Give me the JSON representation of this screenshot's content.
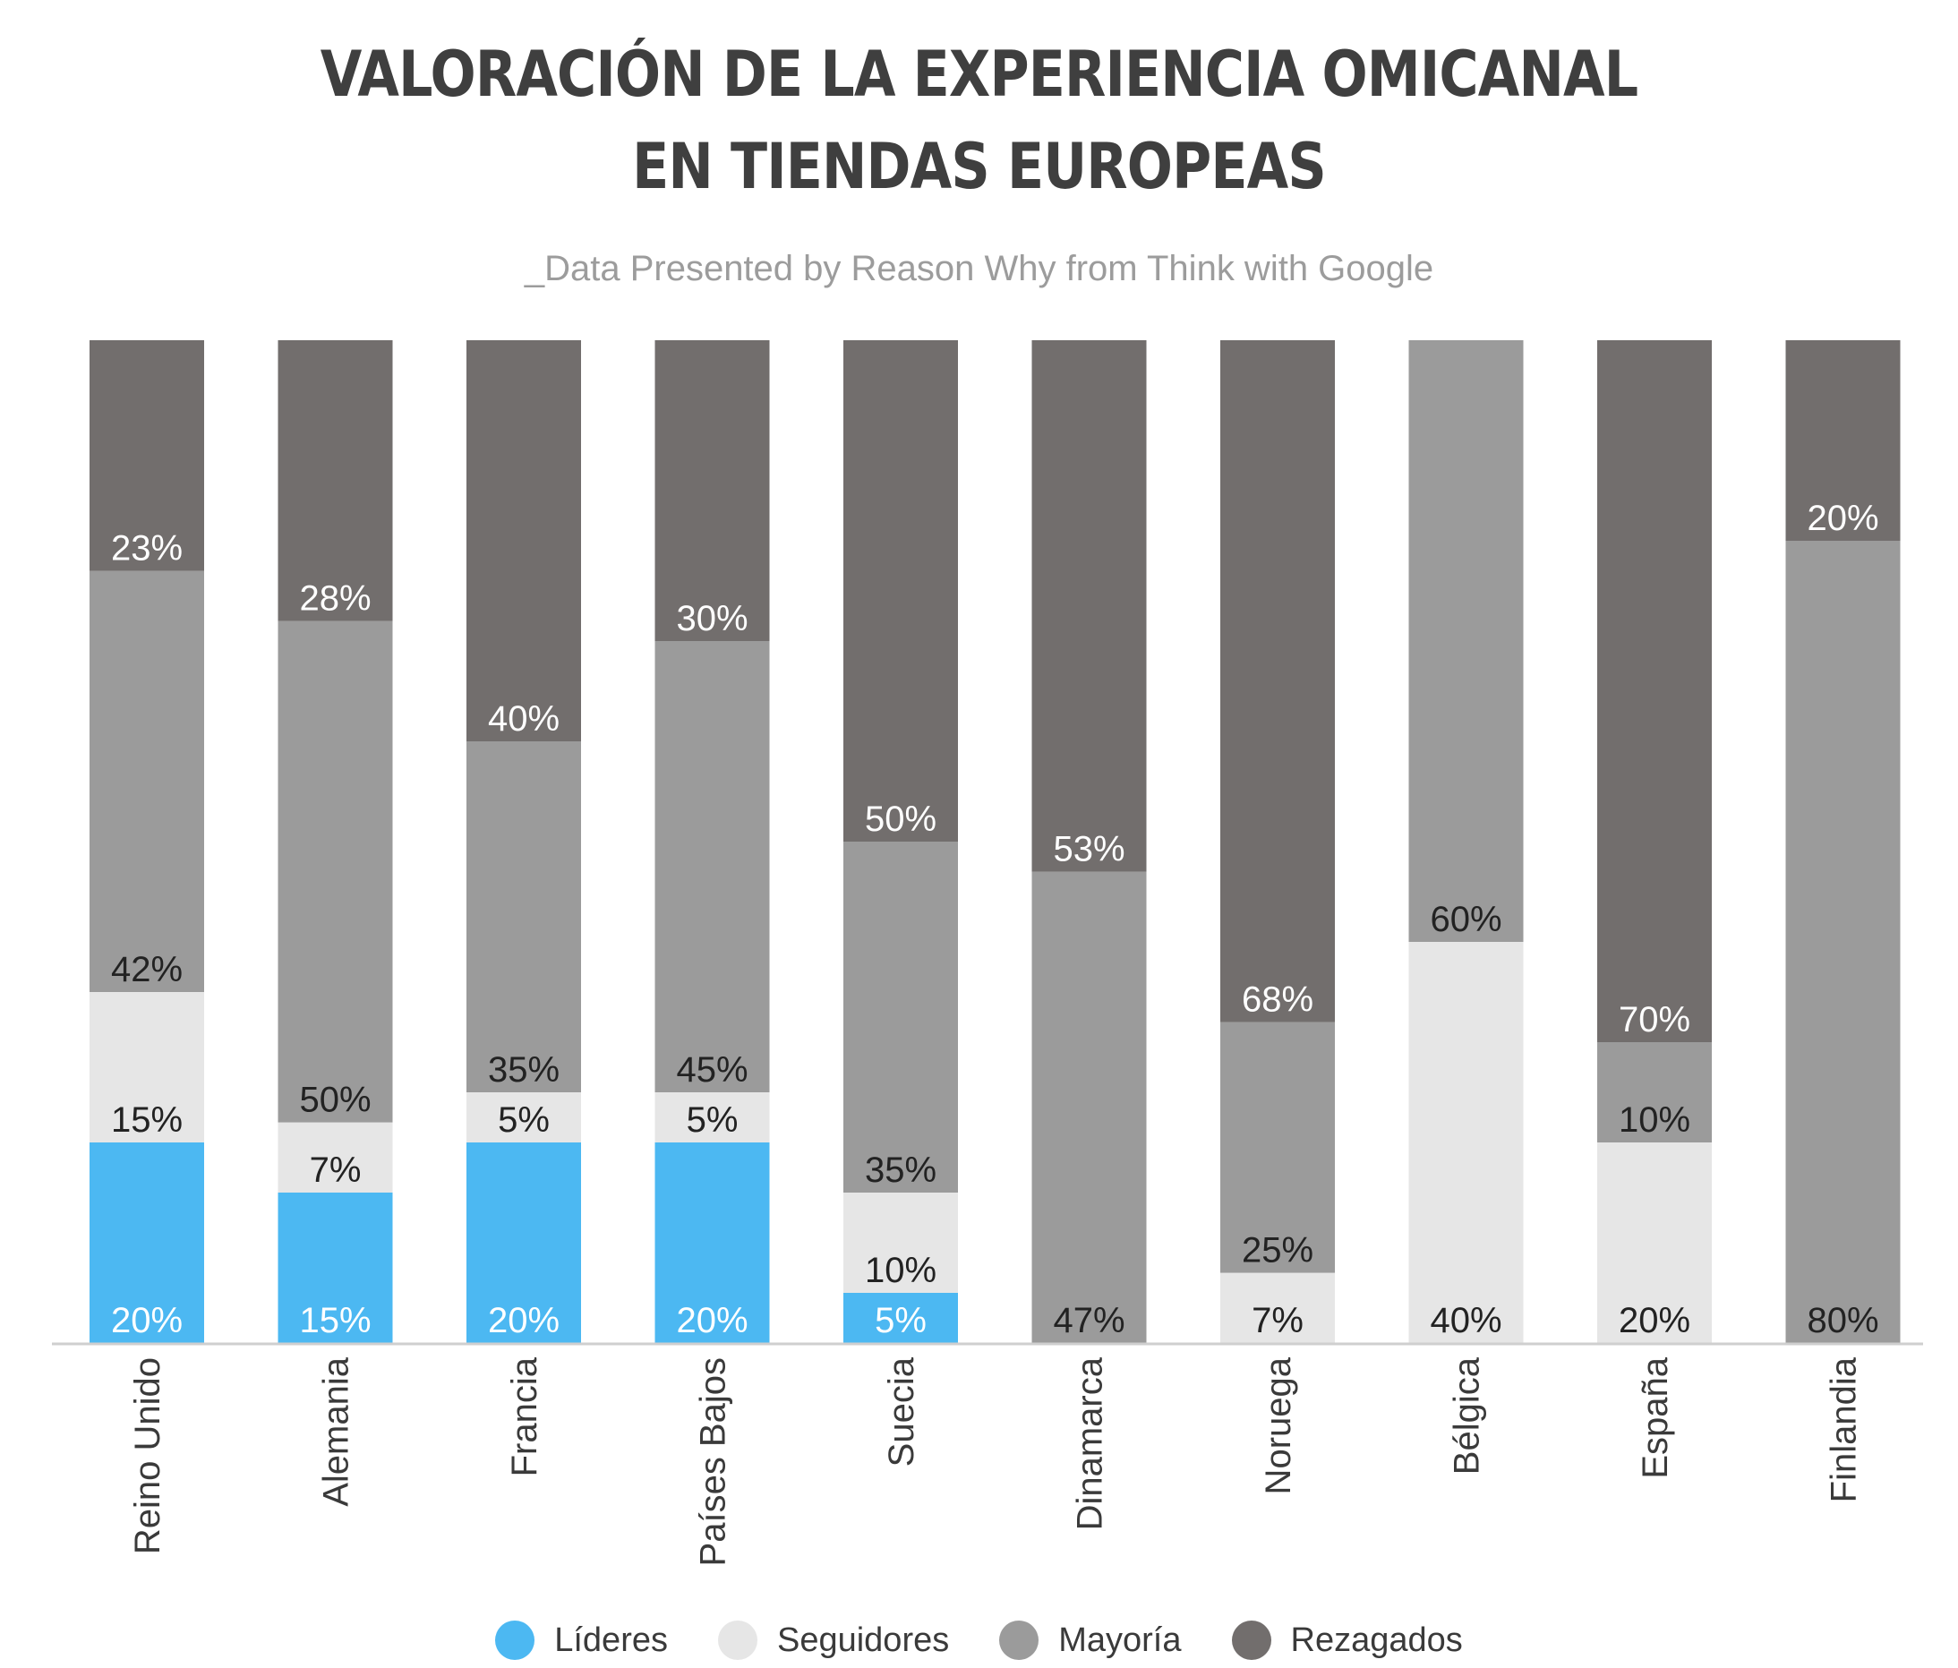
{
  "title_line1": "VALORACIÓN DE LA EXPERIENCIA OMICANAL",
  "title_line2": "EN TIENDAS EUROPEAS",
  "subtitle": "_Data Presented by Reason Why from Think with Google",
  "chart_data": {
    "type": "bar",
    "stacked": true,
    "categories": [
      "Reino Unido",
      "Alemania",
      "Francia",
      "Países Bajos",
      "Suecia",
      "Dinamarca",
      "Noruega",
      "Bélgica",
      "España",
      "Finlandia"
    ],
    "series": [
      {
        "name": "Líderes",
        "color": "#4cb8f2",
        "values": [
          20,
          15,
          20,
          20,
          5,
          0,
          0,
          0,
          0,
          0
        ]
      },
      {
        "name": "Seguidores",
        "color": "#e6e6e6",
        "values": [
          15,
          7,
          5,
          5,
          10,
          0,
          7,
          40,
          20,
          0
        ]
      },
      {
        "name": "Mayoría",
        "color": "#9b9b9b",
        "values": [
          42,
          50,
          35,
          45,
          35,
          47,
          25,
          60,
          10,
          80
        ]
      },
      {
        "name": "Rezagados",
        "color": "#726e6d",
        "values": [
          23,
          28,
          40,
          30,
          50,
          53,
          68,
          0,
          70,
          20
        ]
      }
    ],
    "ylim": [
      0,
      100
    ],
    "legend_position": "bottom",
    "grid": false
  }
}
